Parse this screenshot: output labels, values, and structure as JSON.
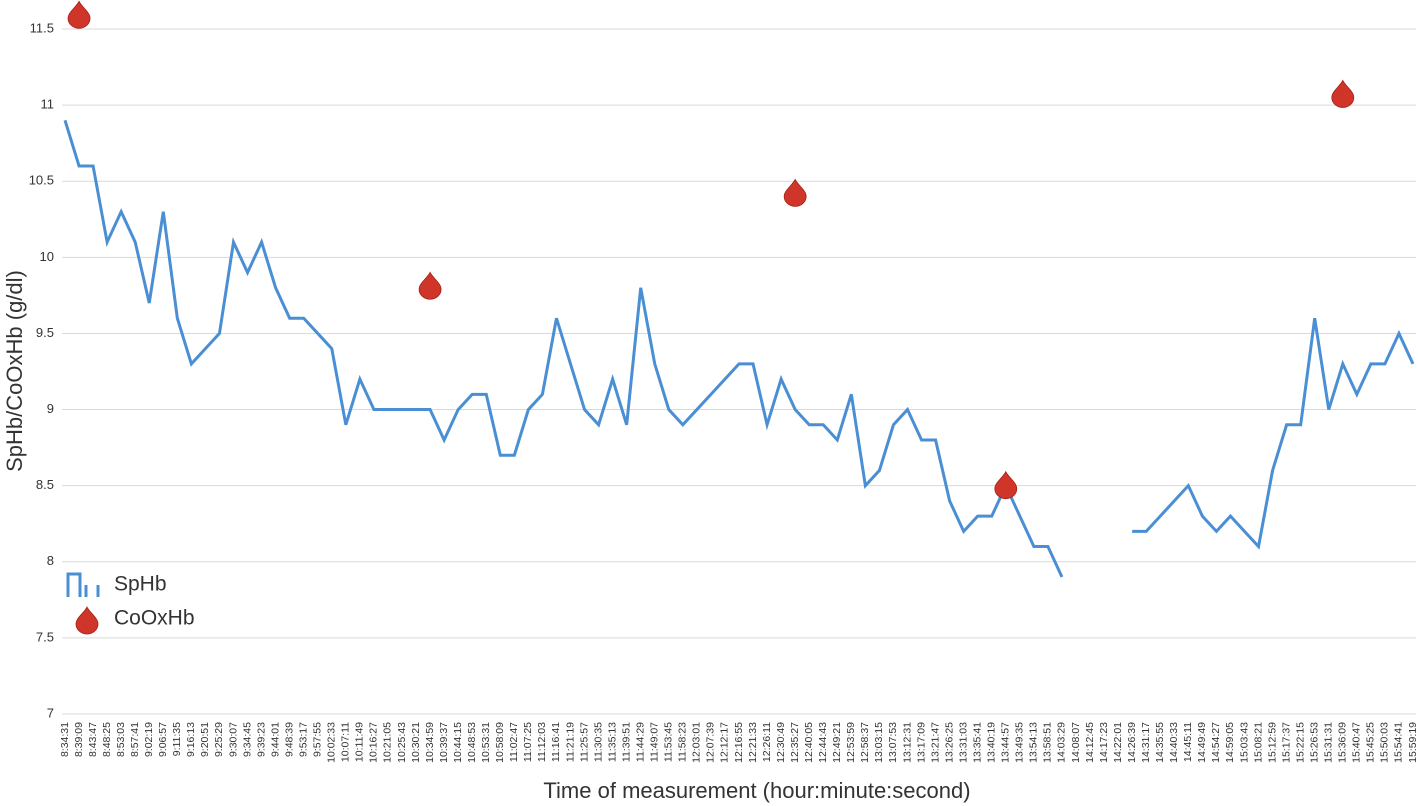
{
  "chart_data": {
    "type": "line",
    "y_label": "SpHb/CoOxHb (g/dl)",
    "x_label": "Time of measurement (hour:minute:second)",
    "categories": [
      "8:34:31",
      "8:39:09",
      "8:43:47",
      "8:48:25",
      "8:53:03",
      "8:57:41",
      "9:02:19",
      "9:06:57",
      "9:11:35",
      "9:16:13",
      "9:20:51",
      "9:25:29",
      "9:30:07",
      "9:34:45",
      "9:39:23",
      "9:44:01",
      "9:48:39",
      "9:53:17",
      "9:57:55",
      "10:02:33",
      "10:07:11",
      "10:11:49",
      "10:16:27",
      "10:21:05",
      "10:25:43",
      "10:30:21",
      "10:34:59",
      "10:39:37",
      "10:44:15",
      "10:48:53",
      "10:53:31",
      "10:58:09",
      "11:02:47",
      "11:07:25",
      "11:12:03",
      "11:16:41",
      "11:21:19",
      "11:25:57",
      "11:30:35",
      "11:35:13",
      "11:39:51",
      "11:44:29",
      "11:49:07",
      "11:53:45",
      "11:58:23",
      "12:03:01",
      "12:07:39",
      "12:12:17",
      "12:16:55",
      "12:21:33",
      "12:26:11",
      "12:30:49",
      "12:35:27",
      "12:40:05",
      "12:44:43",
      "12:49:21",
      "12:53:59",
      "12:58:37",
      "13:03:15",
      "13:07:53",
      "13:12:31",
      "13:17:09",
      "13:21:47",
      "13:26:25",
      "13:31:03",
      "13:35:41",
      "13:40:19",
      "13:44:57",
      "13:49:35",
      "13:54:13",
      "13:58:51",
      "14:03:29",
      "14:08:07",
      "14:12:45",
      "14:17:23",
      "14:22:01",
      "14:26:39",
      "14:31:17",
      "14:35:55",
      "14:40:33",
      "14:45:11",
      "14:49:49",
      "14:54:27",
      "14:59:05",
      "15:03:43",
      "15:08:21",
      "15:12:59",
      "15:17:37",
      "15:22:15",
      "15:26:53",
      "15:31:31",
      "15:36:09",
      "15:40:47",
      "15:45:25",
      "15:50:03",
      "15:54:41",
      "15:59:19"
    ],
    "series": [
      {
        "name": "SpHb",
        "color": "#4a8fd4",
        "kind": "line",
        "values": [
          10.9,
          10.6,
          10.6,
          10.1,
          10.3,
          10.1,
          9.7,
          10.3,
          9.6,
          9.3,
          9.4,
          9.5,
          10.1,
          9.9,
          10.1,
          9.8,
          9.6,
          9.6,
          9.5,
          9.4,
          8.9,
          9.2,
          9.0,
          9.0,
          9.0,
          9.0,
          9.0,
          8.8,
          9.0,
          9.1,
          9.1,
          8.7,
          8.7,
          9.0,
          9.1,
          9.6,
          9.3,
          9.0,
          8.9,
          9.2,
          8.9,
          9.8,
          9.3,
          9.0,
          8.9,
          9.0,
          9.1,
          9.2,
          9.3,
          9.3,
          8.9,
          9.2,
          9.0,
          8.9,
          8.9,
          8.8,
          9.1,
          8.5,
          8.6,
          8.9,
          9.0,
          8.8,
          8.8,
          8.4,
          8.2,
          8.3,
          8.3,
          8.5,
          8.3,
          8.1,
          8.1,
          7.9,
          null,
          null,
          null,
          null,
          8.2,
          8.2,
          8.3,
          8.4,
          8.5,
          8.3,
          8.2,
          8.3,
          8.2,
          8.1,
          8.6,
          8.9,
          8.9,
          9.6,
          9.0,
          9.3,
          9.1,
          9.3,
          9.3,
          9.5,
          9.3
        ]
      },
      {
        "name": "CoOxHb",
        "color": "#d0352a",
        "kind": "drop",
        "values": [
          null,
          11.59,
          null,
          null,
          null,
          null,
          null,
          null,
          null,
          null,
          null,
          null,
          null,
          null,
          null,
          null,
          null,
          null,
          null,
          null,
          null,
          null,
          null,
          null,
          null,
          null,
          9.81,
          null,
          null,
          null,
          null,
          null,
          null,
          null,
          null,
          null,
          null,
          null,
          null,
          null,
          null,
          null,
          null,
          null,
          null,
          null,
          null,
          null,
          null,
          null,
          null,
          null,
          10.42,
          null,
          null,
          null,
          null,
          null,
          null,
          null,
          null,
          null,
          null,
          null,
          null,
          null,
          null,
          8.5,
          null,
          null,
          null,
          null,
          null,
          null,
          null,
          null,
          null,
          null,
          null,
          null,
          null,
          null,
          null,
          null,
          null,
          null,
          null,
          null,
          null,
          null,
          null,
          11.07,
          null,
          null,
          null,
          null,
          null
        ]
      }
    ],
    "ylim": [
      7,
      11.5
    ],
    "yticks": [
      7,
      7.5,
      8,
      8.5,
      9,
      9.5,
      10,
      10.5,
      11,
      11.5
    ],
    "grid": true,
    "legend": "lower-left"
  }
}
